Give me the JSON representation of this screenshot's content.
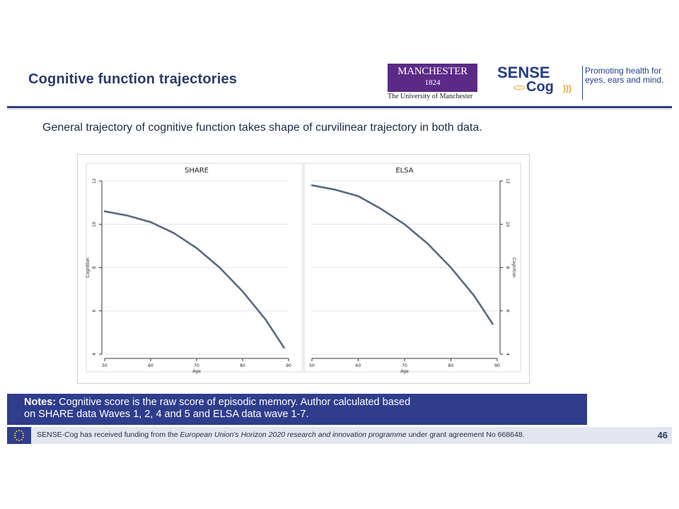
{
  "slide": {
    "title": "Cognitive function trajectories",
    "subtitle": "General trajectory of cognitive function takes shape of curvilinear trajectory in both data."
  },
  "logos": {
    "manchester_line1": "MANCHESTER",
    "manchester_line2": "1824",
    "manchester_sub": "The University of Manchester",
    "sense": "SENSE",
    "cog": "Cog",
    "tagline": "Promoting health for eyes, ears and mind."
  },
  "notes": {
    "label": "Notes:",
    "line1": " Cognitive score is the raw score of episodic memory. Author calculated based",
    "line2": "on SHARE data Waves 1, 2, 4 and 5 and ELSA data wave 1-7."
  },
  "footer": {
    "text_part1": "SENSE-Cog has received funding from the ",
    "text_italic": "European Union's Horizon 2020 research and innovation programme",
    "text_part2": " under grant agreement No 668648.",
    "page_number": "46"
  },
  "colors": {
    "navy": "#2f3d8c",
    "title": "#2b3a6b",
    "line": "#5a6a80"
  },
  "chart_data": [
    {
      "type": "line",
      "title": "SHARE",
      "xlabel": "Age",
      "ylabel": "Cognition",
      "xlim": [
        50,
        90
      ],
      "ylim": [
        4,
        12
      ],
      "xticks": [
        "50",
        "60",
        "70",
        "80",
        "90"
      ],
      "yticks": [
        "4",
        "6",
        "8",
        "10",
        "12"
      ],
      "grid": true,
      "x": [
        50,
        55,
        60,
        65,
        70,
        75,
        80,
        85,
        89
      ],
      "y": [
        10.6,
        10.4,
        10.1,
        9.6,
        8.9,
        8.0,
        6.9,
        5.6,
        4.3
      ]
    },
    {
      "type": "line",
      "title": "ELSA",
      "xlabel": "Age",
      "ylabel": "Cognition",
      "xlim": [
        50,
        90
      ],
      "ylim": [
        4,
        12
      ],
      "xticks": [
        "50",
        "60",
        "70",
        "80",
        "90"
      ],
      "yticks": [
        "4",
        "6",
        "8",
        "10",
        "12"
      ],
      "grid": true,
      "x": [
        50,
        55,
        60,
        65,
        70,
        75,
        80,
        85,
        89
      ],
      "y": [
        11.8,
        11.6,
        11.3,
        10.7,
        10.0,
        9.1,
        8.0,
        6.7,
        5.4
      ]
    }
  ]
}
